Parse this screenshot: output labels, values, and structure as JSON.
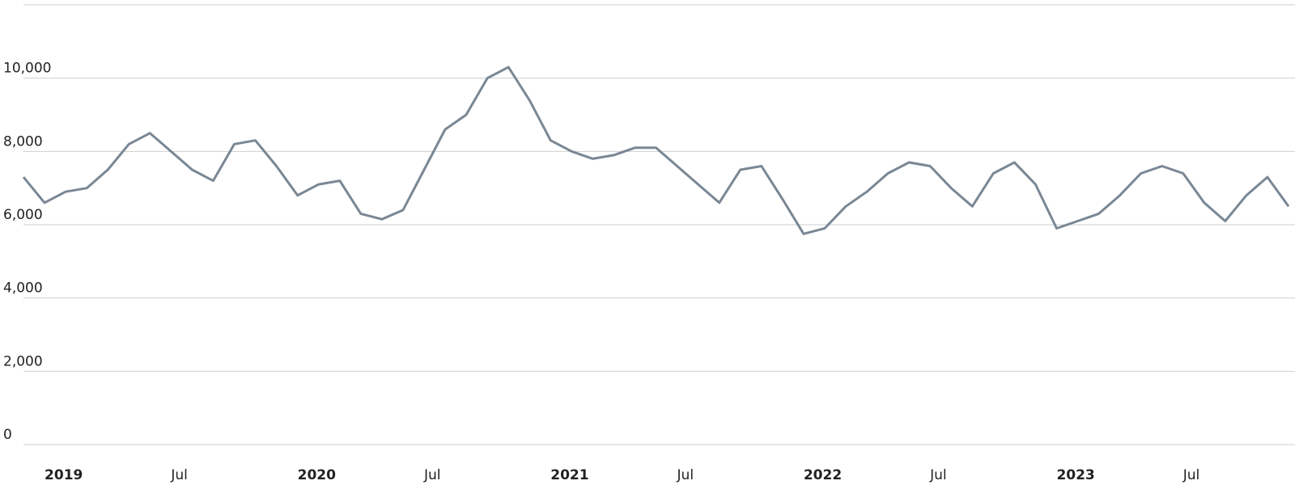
{
  "chart_data": {
    "type": "line",
    "x": [
      "2018-12",
      "2019-01",
      "2019-02",
      "2019-03",
      "2019-04",
      "2019-05",
      "2019-06",
      "2019-07",
      "2019-08",
      "2019-09",
      "2019-10",
      "2019-11",
      "2019-12",
      "2020-01",
      "2020-02",
      "2020-03",
      "2020-04",
      "2020-05",
      "2020-06",
      "2020-07",
      "2020-08",
      "2020-09",
      "2020-10",
      "2020-11",
      "2020-12",
      "2021-01",
      "2021-02",
      "2021-03",
      "2021-04",
      "2021-05",
      "2021-06",
      "2021-07",
      "2021-08",
      "2021-09",
      "2021-10",
      "2021-11",
      "2021-12",
      "2022-01",
      "2022-02",
      "2022-03",
      "2022-04",
      "2022-05",
      "2022-06",
      "2022-07",
      "2022-08",
      "2022-09",
      "2022-10",
      "2022-11",
      "2022-12",
      "2023-01",
      "2023-02",
      "2023-03",
      "2023-04",
      "2023-05",
      "2023-06",
      "2023-07",
      "2023-08",
      "2023-09",
      "2023-10",
      "2023-11",
      "2023-12"
    ],
    "series": [
      {
        "color": "#7a8794",
        "values": [
          7300,
          6600,
          6900,
          7000,
          7500,
          8200,
          8500,
          8000,
          7500,
          7200,
          8200,
          8300,
          7600,
          6800,
          7100,
          7200,
          6300,
          6150,
          6400,
          7500,
          8600,
          9000,
          10000,
          10300,
          9400,
          8300,
          8000,
          7800,
          7900,
          8100,
          8100,
          7600,
          7100,
          6600,
          7500,
          7600,
          6700,
          5750,
          5900,
          6500,
          6900,
          7400,
          7700,
          7600,
          7000,
          6500,
          7400,
          7700,
          7100,
          5900,
          6100,
          6300,
          6800,
          7400,
          7600,
          7400,
          6600,
          6100,
          6800,
          7300,
          6500
        ]
      }
    ],
    "xlim": [
      "2018-12",
      "2023-12"
    ],
    "xticks": [
      {
        "value": "2019-01",
        "label": "2019"
      },
      {
        "value": "2019-07",
        "label": "Jul"
      },
      {
        "value": "2020-01",
        "label": "2020"
      },
      {
        "value": "2020-07",
        "label": "Jul"
      },
      {
        "value": "2021-01",
        "label": "2021"
      },
      {
        "value": "2021-07",
        "label": "Jul"
      },
      {
        "value": "2022-01",
        "label": "2022"
      },
      {
        "value": "2022-07",
        "label": "Jul"
      },
      {
        "value": "2023-01",
        "label": "2023"
      },
      {
        "value": "2023-07",
        "label": "Jul"
      }
    ],
    "ylim": [
      0,
      12000
    ],
    "yticks": [
      0,
      {
        "value": 2000,
        "label": "2,000"
      },
      {
        "value": 4000,
        "label": "4,000"
      },
      {
        "value": 6000,
        "label": "6,000"
      },
      {
        "value": 8000,
        "label": "8,000"
      },
      {
        "value": 10000,
        "label": "10,000"
      }
    ],
    "grid": true
  }
}
